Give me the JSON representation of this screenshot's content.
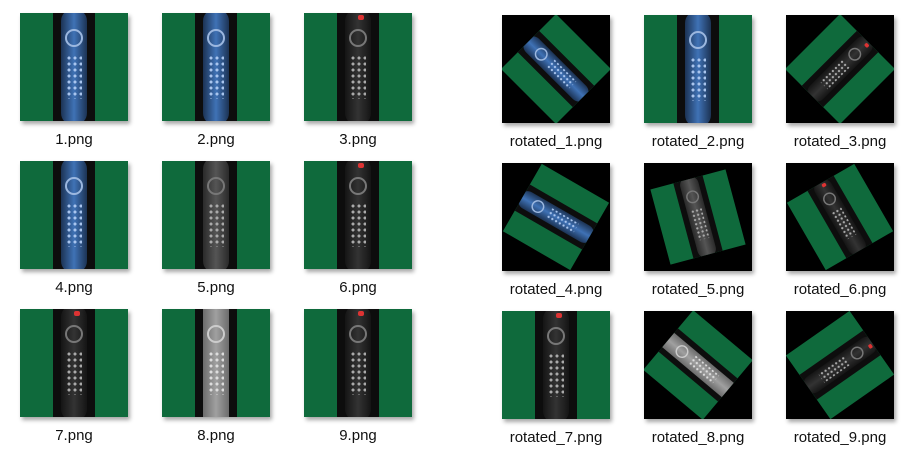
{
  "left_grid": [
    {
      "file_name": "1.png",
      "remote": "blue"
    },
    {
      "file_name": "2.png",
      "remote": "blue"
    },
    {
      "file_name": "3.png",
      "remote": "dark"
    },
    {
      "file_name": "4.png",
      "remote": "blue"
    },
    {
      "file_name": "5.png",
      "remote": "gray"
    },
    {
      "file_name": "6.png",
      "remote": "dark"
    },
    {
      "file_name": "7.png",
      "remote": "dark"
    },
    {
      "file_name": "8.png",
      "remote": "silver"
    },
    {
      "file_name": "9.png",
      "remote": "dark"
    }
  ],
  "right_grid": [
    {
      "file_name": "rotated_1.png",
      "remote": "blue",
      "rotation_deg": -45
    },
    {
      "file_name": "rotated_2.png",
      "remote": "blue",
      "rotation_deg": 0
    },
    {
      "file_name": "rotated_3.png",
      "remote": "dark",
      "rotation_deg": 45
    },
    {
      "file_name": "rotated_4.png",
      "remote": "blue",
      "rotation_deg": -60
    },
    {
      "file_name": "rotated_5.png",
      "remote": "gray",
      "rotation_deg": -15
    },
    {
      "file_name": "rotated_6.png",
      "remote": "dark",
      "rotation_deg": -30
    },
    {
      "file_name": "rotated_7.png",
      "remote": "dark",
      "rotation_deg": 0
    },
    {
      "file_name": "rotated_8.png",
      "remote": "silver",
      "rotation_deg": -50
    },
    {
      "file_name": "rotated_9.png",
      "remote": "dark",
      "rotation_deg": 55
    }
  ],
  "colors": {
    "green": "#0f6a3c",
    "black": "#000000"
  }
}
